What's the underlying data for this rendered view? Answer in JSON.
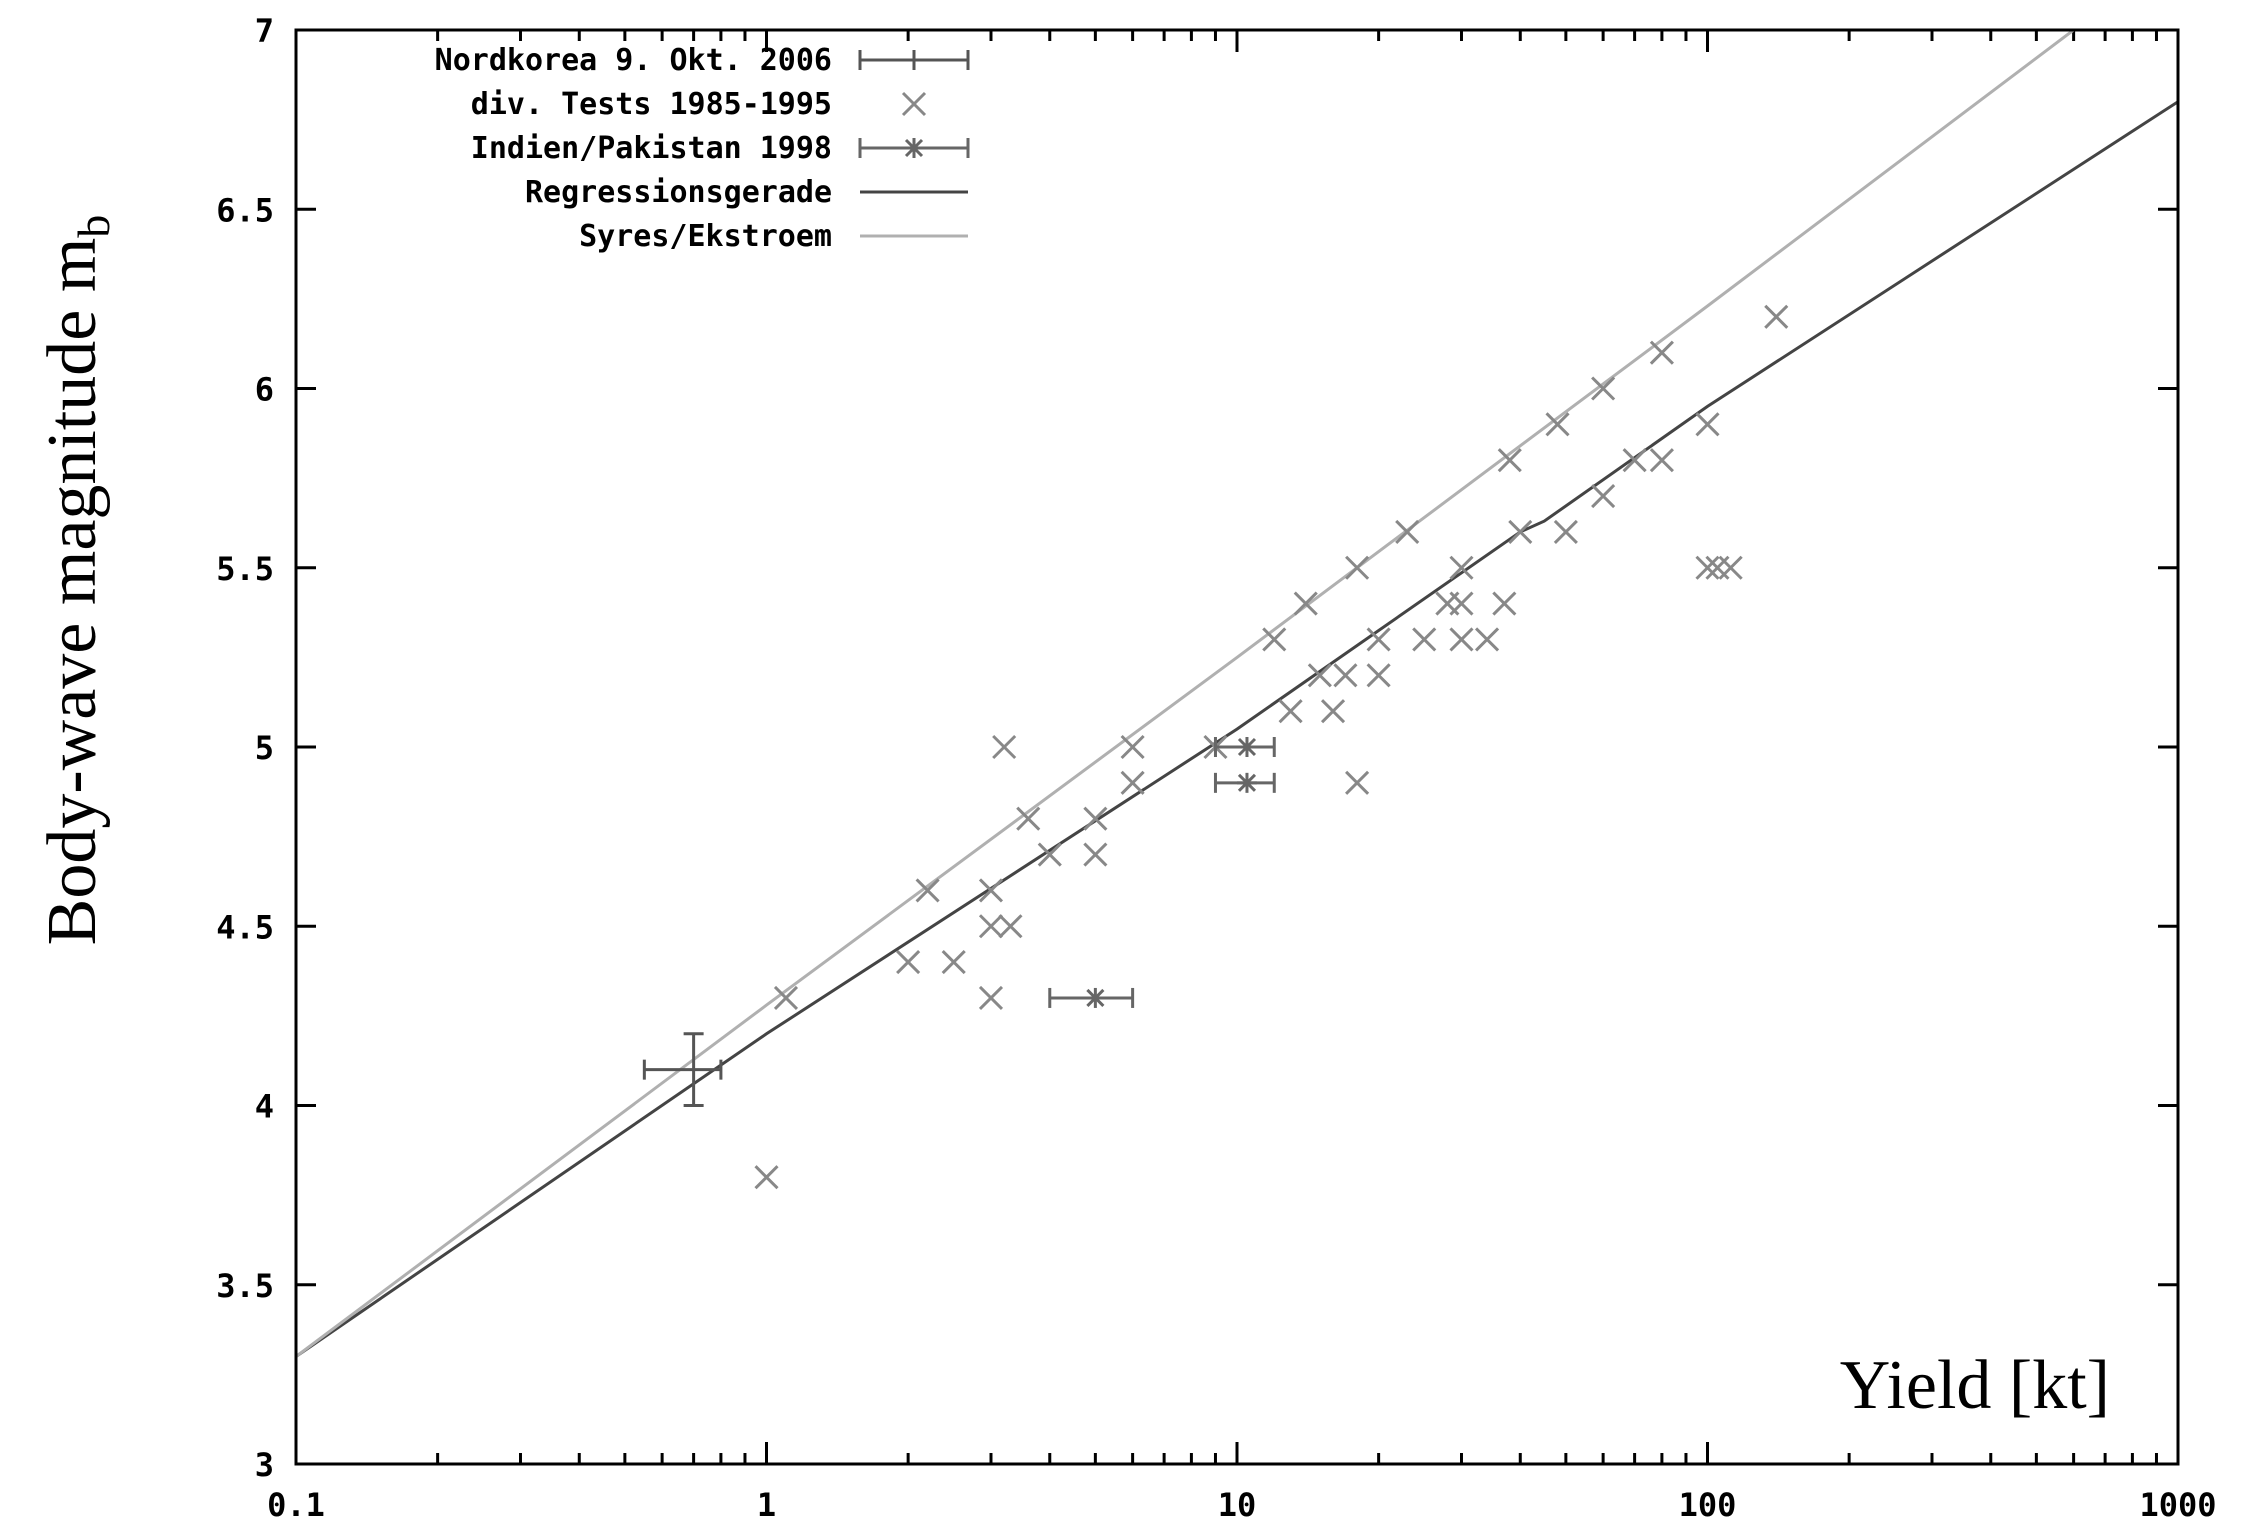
{
  "chart_data": {
    "type": "scatter",
    "xscale": "log",
    "xlim": [
      0.1,
      1000
    ],
    "ylim": [
      3,
      7
    ],
    "xticks": [
      {
        "value": 0.1,
        "label": "0.1"
      },
      {
        "value": 1,
        "label": "1"
      },
      {
        "value": 10,
        "label": "10"
      },
      {
        "value": 100,
        "label": "100"
      },
      {
        "value": 1000,
        "label": "1000"
      }
    ],
    "yticks": [
      {
        "value": 3,
        "label": "3"
      },
      {
        "value": 3.5,
        "label": "3.5"
      },
      {
        "value": 4,
        "label": "4"
      },
      {
        "value": 4.5,
        "label": "4.5"
      },
      {
        "value": 5,
        "label": "5"
      },
      {
        "value": 5.5,
        "label": "5.5"
      },
      {
        "value": 6,
        "label": "6"
      },
      {
        "value": 6.5,
        "label": "6.5"
      },
      {
        "value": 7,
        "label": "7"
      }
    ],
    "xlabel": "Yield [kt]",
    "ylabel": "Body-wave magnitude m",
    "ylabel_sub": "b",
    "legend_position": "top-left",
    "series": [
      {
        "name": "Nordkorea 9. Okt. 2006",
        "marker": "errorbar-plus",
        "color": "#555555",
        "points": [
          {
            "x": 0.7,
            "y": 4.1,
            "xmin": 0.55,
            "xmax": 0.8,
            "ymin": 4.0,
            "ymax": 4.2
          }
        ]
      },
      {
        "name": "div. Tests 1985-1995",
        "marker": "x",
        "color": "#888888",
        "points": [
          {
            "x": 1.0,
            "y": 3.8
          },
          {
            "x": 1.1,
            "y": 4.3
          },
          {
            "x": 2.0,
            "y": 4.4
          },
          {
            "x": 2.2,
            "y": 4.6
          },
          {
            "x": 2.5,
            "y": 4.4
          },
          {
            "x": 3.0,
            "y": 4.3
          },
          {
            "x": 3.0,
            "y": 4.5
          },
          {
            "x": 3.0,
            "y": 4.6
          },
          {
            "x": 3.2,
            "y": 5.0
          },
          {
            "x": 3.3,
            "y": 4.5
          },
          {
            "x": 3.6,
            "y": 4.8
          },
          {
            "x": 4.0,
            "y": 4.7
          },
          {
            "x": 5.0,
            "y": 4.7
          },
          {
            "x": 5.0,
            "y": 4.8
          },
          {
            "x": 6.0,
            "y": 4.9
          },
          {
            "x": 6.0,
            "y": 5.0
          },
          {
            "x": 9.0,
            "y": 5.0
          },
          {
            "x": 12.0,
            "y": 5.3
          },
          {
            "x": 13.0,
            "y": 5.1
          },
          {
            "x": 14.0,
            "y": 5.4
          },
          {
            "x": 15.0,
            "y": 5.2
          },
          {
            "x": 16.0,
            "y": 5.1
          },
          {
            "x": 17.0,
            "y": 5.2
          },
          {
            "x": 18.0,
            "y": 4.9
          },
          {
            "x": 18.0,
            "y": 5.5
          },
          {
            "x": 20.0,
            "y": 5.2
          },
          {
            "x": 20.0,
            "y": 5.3
          },
          {
            "x": 23.0,
            "y": 5.6
          },
          {
            "x": 25.0,
            "y": 5.3
          },
          {
            "x": 28.0,
            "y": 5.4
          },
          {
            "x": 30.0,
            "y": 5.3
          },
          {
            "x": 30.0,
            "y": 5.4
          },
          {
            "x": 30.0,
            "y": 5.5
          },
          {
            "x": 34.0,
            "y": 5.3
          },
          {
            "x": 37.0,
            "y": 5.4
          },
          {
            "x": 38.0,
            "y": 5.8
          },
          {
            "x": 40.0,
            "y": 5.6
          },
          {
            "x": 48.0,
            "y": 5.9
          },
          {
            "x": 50.0,
            "y": 5.6
          },
          {
            "x": 60.0,
            "y": 5.7
          },
          {
            "x": 60.0,
            "y": 6.0
          },
          {
            "x": 70.0,
            "y": 5.8
          },
          {
            "x": 80.0,
            "y": 5.8
          },
          {
            "x": 80.0,
            "y": 6.1
          },
          {
            "x": 100.0,
            "y": 5.5
          },
          {
            "x": 100.0,
            "y": 5.9
          },
          {
            "x": 105.0,
            "y": 5.5
          },
          {
            "x": 112.0,
            "y": 5.5
          },
          {
            "x": 140.0,
            "y": 6.2
          }
        ]
      },
      {
        "name": "Indien/Pakistan 1998",
        "marker": "errorbar-star",
        "color": "#666666",
        "points": [
          {
            "x": 5.0,
            "y": 4.3,
            "xmin": 4.0,
            "xmax": 6.0
          },
          {
            "x": 10.5,
            "y": 4.9,
            "xmin": 9.0,
            "xmax": 12.0
          },
          {
            "x": 10.5,
            "y": 5.0,
            "xmin": 9.0,
            "xmax": 12.0
          }
        ]
      },
      {
        "name": "Regressionsgerade",
        "marker": "line",
        "color": "#444444",
        "points": [
          {
            "x": 0.1,
            "y": 3.3
          },
          {
            "x": 1.0,
            "y": 4.2
          },
          {
            "x": 10.0,
            "y": 5.05
          },
          {
            "x": 40.0,
            "y": 5.6
          },
          {
            "x": 45.0,
            "y": 5.63
          },
          {
            "x": 100.0,
            "y": 5.95
          },
          {
            "x": 1000.0,
            "y": 6.8
          }
        ]
      },
      {
        "name": "Syres/Ekstroem",
        "marker": "line",
        "color": "#b0b0b0",
        "points": [
          {
            "x": 0.1,
            "y": 3.3
          },
          {
            "x": 1.0,
            "y": 4.28
          },
          {
            "x": 10.0,
            "y": 5.25
          },
          {
            "x": 100.0,
            "y": 6.23
          },
          {
            "x": 600.0,
            "y": 7.0
          }
        ]
      }
    ]
  }
}
